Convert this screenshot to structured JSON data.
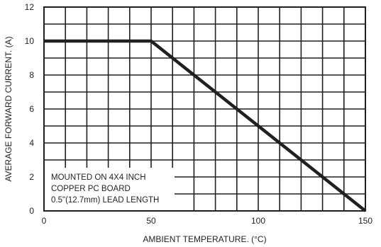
{
  "chart_data": {
    "type": "line",
    "title": "",
    "xlabel": "AMBIENT TEMPERATURE. (°C)",
    "ylabel": "AVERAGE FORWARD CURRENT. (A)",
    "xlim": [
      0,
      150
    ],
    "ylim": [
      0,
      12
    ],
    "x_ticks": [
      0,
      50,
      100,
      150
    ],
    "y_ticks": [
      0,
      2,
      4,
      6,
      8,
      10,
      12
    ],
    "grid": true,
    "series": [
      {
        "x": [
          0,
          50,
          150
        ],
        "y": [
          10,
          10,
          0
        ]
      }
    ],
    "annotation": [
      "MOUNTED ON 4X4 INCH",
      "COPPER PC BOARD",
      "0.5\"(12.7mm) LEAD LENGTH"
    ]
  }
}
